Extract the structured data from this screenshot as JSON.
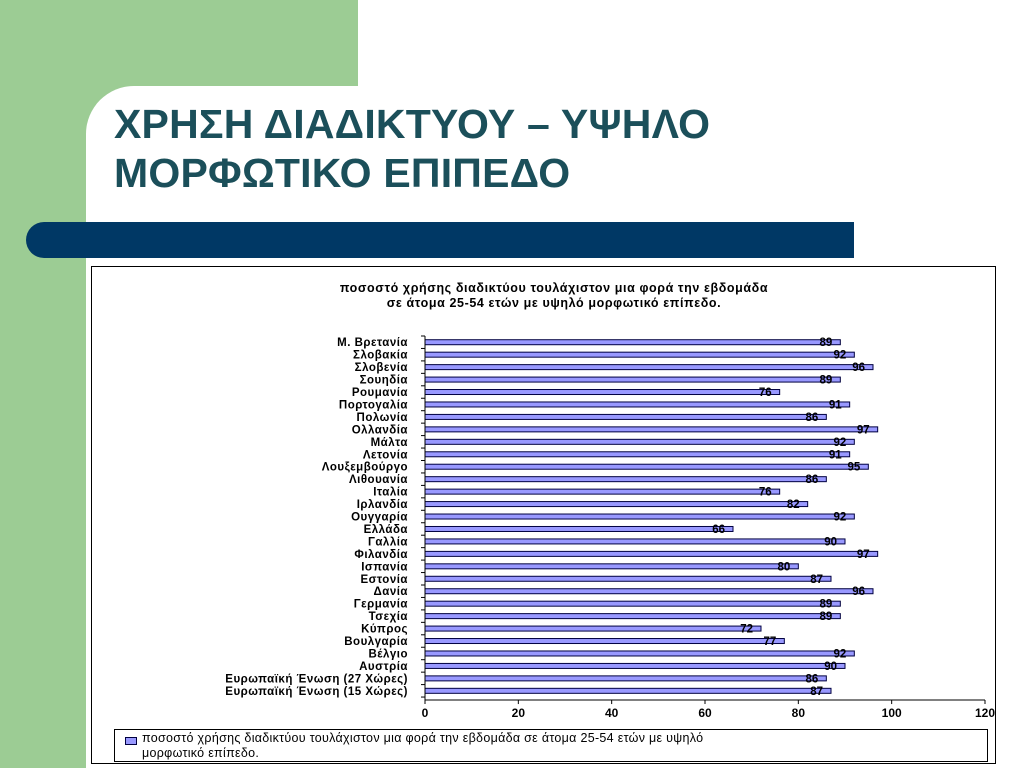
{
  "slide": {
    "title_line1": "ΧΡΗΣΗ ΔΙΑΔΙΚΤΥΟΥ – ΥΨΗΛΟ",
    "title_line2": "ΜΟΡΦΩΤΙΚΟ ΕΠΙΠΕΔΟ"
  },
  "colors": {
    "green_panel": "#9ccc94",
    "title_text": "#1b4f5a",
    "title_bar": "#003865",
    "bar_fill": "#9999ff",
    "bar_edge": "#000040"
  },
  "chart_data": {
    "type": "bar",
    "orientation": "horizontal",
    "title_lines": [
      "ποσοστό χρήσης διαδικτύου τουλάχιστον μια φορά την εβδομάδα",
      "σε άτομα 25-54 ετών με υψηλό μορφωτικό επίπεδο."
    ],
    "categories": [
      "Μ. Βρετανία",
      "Σλοβακία",
      "Σλοβενία",
      "Σουηδία",
      "Ρουμανία",
      "Πορτογαλία",
      "Πολωνία",
      "Ολλανδία",
      "Μάλτα",
      "Λετονία",
      "Λουξεμβούργο",
      "Λιθουανία",
      "Ιταλία",
      "Ιρλανδία",
      "Ουγγαρία",
      "Ελλάδα",
      "Γαλλία",
      "Φιλανδία",
      "Ισπανία",
      "Εστονία",
      "Δανία",
      "Γερμανία",
      "Τσεχία",
      "Κύπρος",
      "Βουλγαρία",
      "Βέλγιο",
      "Αυστρία",
      "Ευρωπαϊκή Ένωση (27 Χώρες)",
      "Ευρωπαϊκή Ένωση (15 Χώρες)"
    ],
    "series": [
      {
        "name": "ποσοστό χρήσης διαδικτύου τουλάχιστον μια φορά την εβδομάδα σε άτομα 25-54 ετών με υψηλό μορφωτικό επίπεδο.",
        "values": [
          89,
          92,
          96,
          89,
          76,
          91,
          86,
          97,
          92,
          91,
          95,
          86,
          76,
          82,
          92,
          66,
          90,
          97,
          80,
          87,
          96,
          89,
          89,
          72,
          77,
          92,
          90,
          86,
          87
        ]
      }
    ],
    "xlim": [
      0,
      120
    ],
    "x_ticks": [
      "0",
      "20",
      "40",
      "60",
      "80",
      "100",
      "120"
    ],
    "xlabel": "",
    "ylabel": "",
    "grid": false,
    "legend_position": "bottom",
    "legend_lines": [
      "ποσοστό χρήσης διαδικτύου τουλάχιστον μια φορά την εβδομάδα σε άτομα 25-54 ετών με υψηλό",
      "μορφωτικό επίπεδο."
    ]
  }
}
